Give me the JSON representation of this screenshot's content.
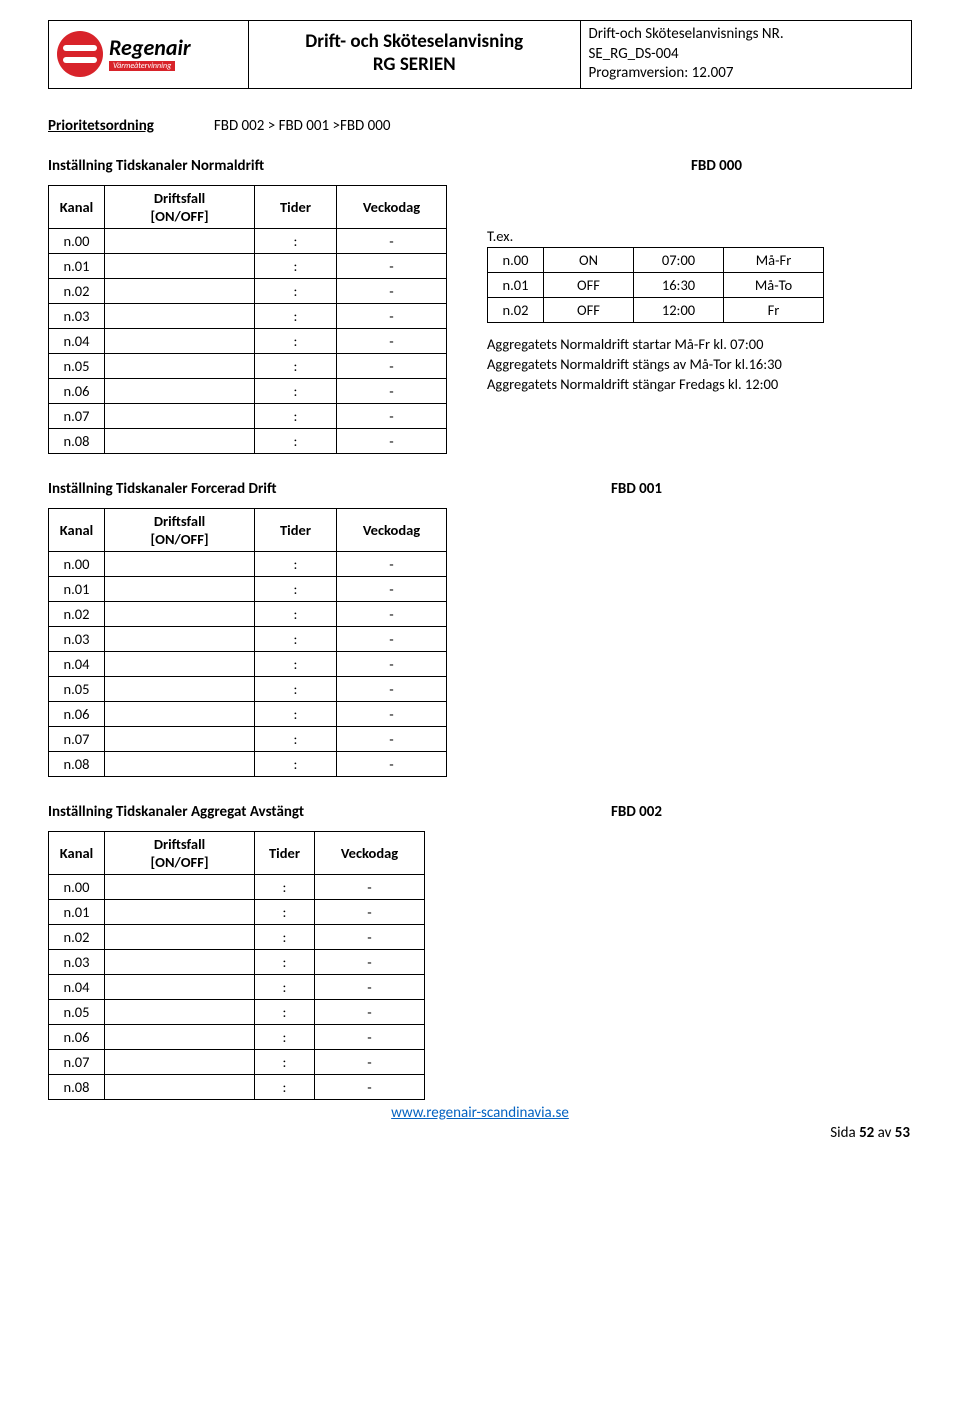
{
  "header": {
    "brand": "Regenair",
    "brand_sub": "Värmeåtervinning",
    "title_line1": "Drift- och Sköteselanvisning",
    "title_line2": "RG SERIEN",
    "meta_line1": "Drift-och Sköteselanvisnings NR.",
    "meta_line2": "SE_RG_DS-004",
    "meta_line3": "Programversion: 12.007"
  },
  "priority": {
    "label": "Prioritetsordning",
    "value": "FBD 002 > FBD 001 >FBD 000"
  },
  "section1": {
    "title": "Inställning Tidskanaler Normaldrift",
    "fbd": "FBD 000",
    "th_kanal": "Kanal",
    "th_drift": "Driftsfall\n[ON/OFF]",
    "th_tider": "Tider",
    "th_veck": "Veckodag",
    "rows": [
      "n.00",
      "n.01",
      "n.02",
      "n.03",
      "n.04",
      "n.05",
      "n.06",
      "n.07",
      "n.08"
    ],
    "colon": ":",
    "dash": "-",
    "ex_label": "T.ex.",
    "ex_rows": [
      [
        "n.00",
        "ON",
        "07:00",
        "Må-Fr"
      ],
      [
        "n.01",
        "OFF",
        "16:30",
        "Må-To"
      ],
      [
        "n.02",
        "OFF",
        "12:00",
        "Fr"
      ]
    ],
    "notes": [
      "Aggregatets Normaldrift startar Må-Fr kl. 07:00",
      "Aggregatets Normaldrift stängs av Må-Tor kl.16:30",
      "Aggregatets Normaldrift stängar Fredags kl. 12:00"
    ]
  },
  "section2": {
    "title": "Inställning Tidskanaler Forcerad Drift",
    "fbd": "FBD 001",
    "th_kanal": "Kanal",
    "th_drift": "Driftsfall\n[ON/OFF]",
    "th_tider": "Tider",
    "th_veck": "Veckodag",
    "rows": [
      "n.00",
      "n.01",
      "n.02",
      "n.03",
      "n.04",
      "n.05",
      "n.06",
      "n.07",
      "n.08"
    ],
    "colon": ":",
    "dash": "-"
  },
  "section3": {
    "title": "Inställning Tidskanaler Aggregat Avstängt",
    "fbd": "FBD 002",
    "th_kanal": "Kanal",
    "th_drift": "Driftsfall\n[ON/OFF]",
    "th_tider": "Tider",
    "th_veck": "Veckodag",
    "rows": [
      "n.00",
      "n.01",
      "n.02",
      "n.03",
      "n.04",
      "n.05",
      "n.06",
      "n.07",
      "n.08"
    ],
    "colon": ":",
    "dash": "-"
  },
  "footer": {
    "url": "www.regenair-scandinavia.se",
    "page_label": "Sida ",
    "page_num": "52",
    "page_of": " av ",
    "page_total": "53"
  }
}
